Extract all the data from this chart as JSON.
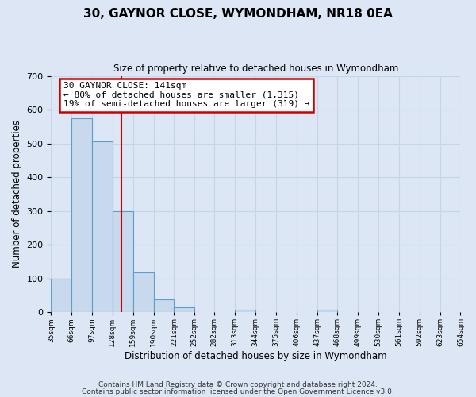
{
  "title": "30, GAYNOR CLOSE, WYMONDHAM, NR18 0EA",
  "subtitle": "Size of property relative to detached houses in Wymondham",
  "xlabel": "Distribution of detached houses by size in Wymondham",
  "ylabel": "Number of detached properties",
  "bar_left_edges": [
    35,
    66,
    97,
    128,
    159,
    190,
    221,
    252,
    282,
    313,
    344,
    375,
    406,
    437,
    468,
    499,
    530,
    561,
    592,
    623
  ],
  "bar_heights": [
    100,
    575,
    507,
    300,
    117,
    37,
    14,
    0,
    0,
    7,
    0,
    0,
    0,
    7,
    0,
    0,
    0,
    0,
    0,
    0
  ],
  "bin_width": 31,
  "bar_color": "#c8d9ed",
  "bar_edge_color": "#5a9ec9",
  "tick_labels": [
    "35sqm",
    "66sqm",
    "97sqm",
    "128sqm",
    "159sqm",
    "190sqm",
    "221sqm",
    "252sqm",
    "282sqm",
    "313sqm",
    "344sqm",
    "375sqm",
    "406sqm",
    "437sqm",
    "468sqm",
    "499sqm",
    "530sqm",
    "561sqm",
    "592sqm",
    "623sqm",
    "654sqm"
  ],
  "ylim": [
    0,
    700
  ],
  "yticks": [
    0,
    100,
    200,
    300,
    400,
    500,
    600,
    700
  ],
  "property_line_x": 141,
  "property_line_color": "#cc0000",
  "annotation_text": "30 GAYNOR CLOSE: 141sqm\n← 80% of detached houses are smaller (1,315)\n19% of semi-detached houses are larger (319) →",
  "annotation_box_facecolor": "#ffffff",
  "annotation_box_edgecolor": "#cc0000",
  "grid_color": "#c8d4e8",
  "background_color": "#dce6f5",
  "plot_bg_color": "#dce6f5",
  "footer_line1": "Contains HM Land Registry data © Crown copyright and database right 2024.",
  "footer_line2": "Contains public sector information licensed under the Open Government Licence v3.0."
}
